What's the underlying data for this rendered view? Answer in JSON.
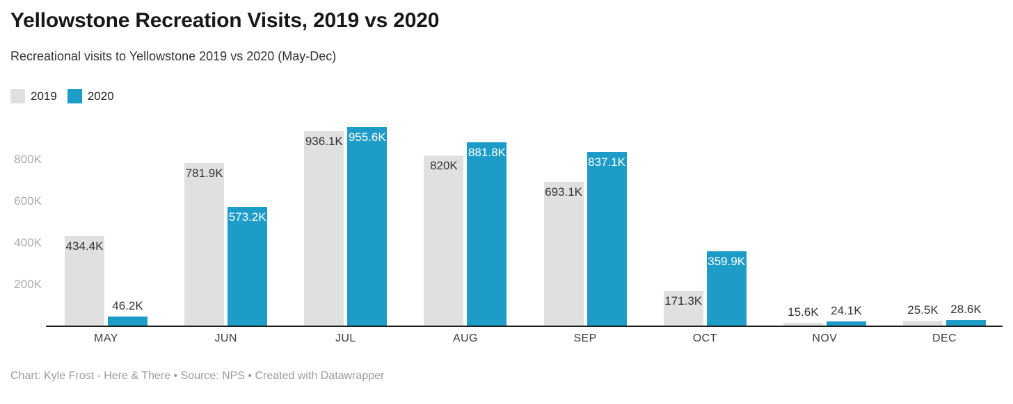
{
  "footer": {
    "text": "Chart: Kyle Frost - Here & There • Source: NPS • Created with Datawrapper"
  },
  "chart_data": {
    "type": "bar",
    "grouped": true,
    "title": "Yellowstone Recreation Visits, 2019 vs 2020",
    "subtitle": "Recreational visits to Yellowstone 2019 vs 2020 (May-Dec)",
    "categories": [
      "MAY",
      "JUN",
      "JUL",
      "AUG",
      "SEP",
      "OCT",
      "NOV",
      "DEC"
    ],
    "series": [
      {
        "name": "2019",
        "color": "#e0e0e0",
        "inside_label_color": "#333333",
        "values_k": [
          434.4,
          781.9,
          936.1,
          820,
          693.1,
          171.3,
          15.6,
          25.5
        ],
        "labels": [
          "434.4K",
          "781.9K",
          "936.1K",
          "820K",
          "693.1K",
          "171.3K",
          "15.6K",
          "25.5K"
        ]
      },
      {
        "name": "2020",
        "color": "#1e9cc8",
        "inside_label_color": "#ffffff",
        "values_k": [
          46.2,
          573.2,
          955.6,
          881.8,
          837.1,
          359.9,
          24.1,
          28.6
        ],
        "labels": [
          "46.2K",
          "573.2K",
          "955.6K",
          "881.8K",
          "837.1K",
          "359.9K",
          "24.1K",
          "28.6K"
        ]
      }
    ],
    "unit": "visits (thousands)",
    "ylabel": "",
    "xlabel": "",
    "ylim_k": [
      0,
      1000
    ],
    "y_ticks": [
      {
        "label": "200K",
        "value_k": 200
      },
      {
        "label": "400K",
        "value_k": 400
      },
      {
        "label": "600K",
        "value_k": 600
      },
      {
        "label": "800K",
        "value_k": 800
      }
    ],
    "grid": false,
    "legend_position": "top-left"
  }
}
